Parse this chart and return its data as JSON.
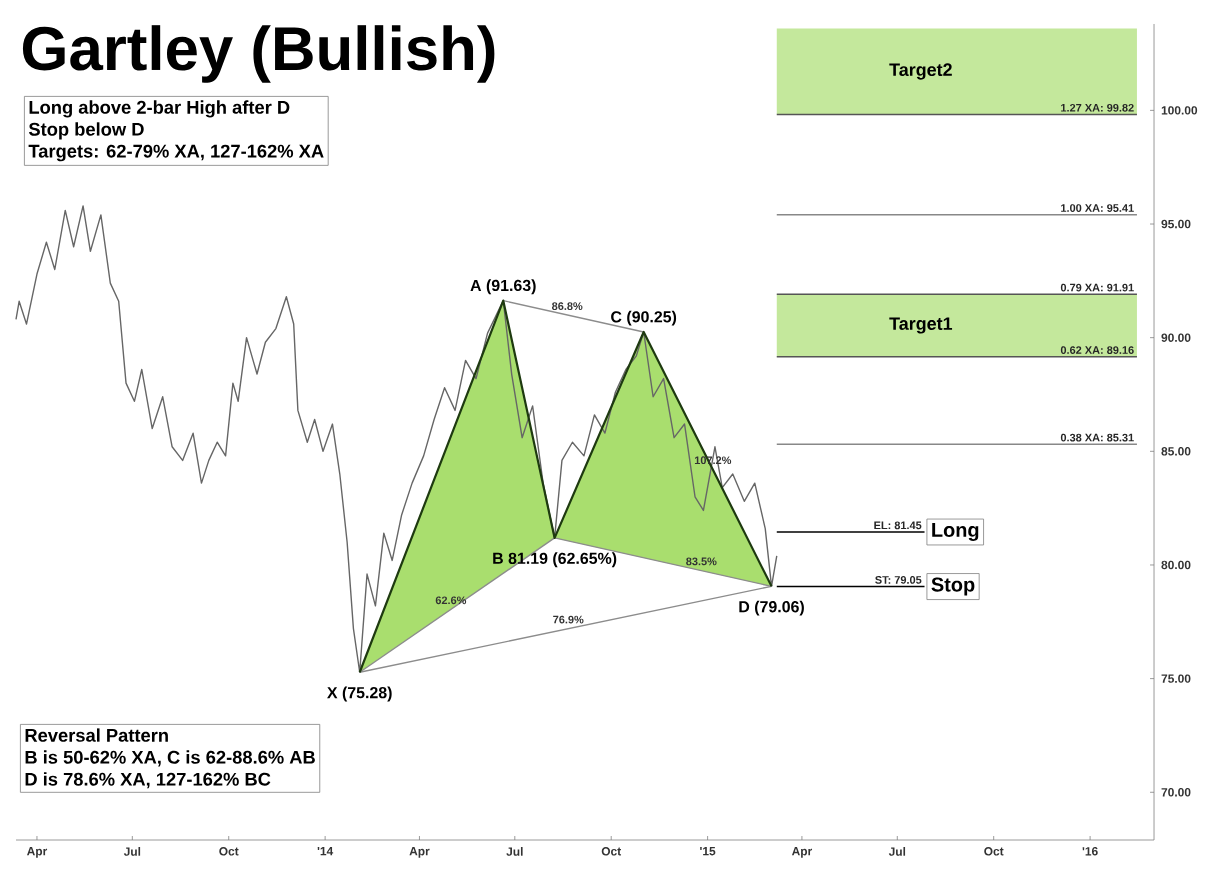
{
  "chart_data": {
    "type": "line",
    "title": "Gartley (Bullish)",
    "xlim": [
      "2013-03-12",
      "2016-03-02"
    ],
    "ylim": [
      67.9,
      103.8
    ],
    "xticks": [
      {
        "value": "2013-04-01",
        "label": "Apr"
      },
      {
        "value": "2013-07-01",
        "label": "Jul"
      },
      {
        "value": "2013-10-01",
        "label": "Oct"
      },
      {
        "value": "2014-01-01",
        "label": "'14"
      },
      {
        "value": "2014-04-01",
        "label": "Apr"
      },
      {
        "value": "2014-07-01",
        "label": "Jul"
      },
      {
        "value": "2014-10-01",
        "label": "Oct"
      },
      {
        "value": "2015-01-01",
        "label": "'15"
      },
      {
        "value": "2015-04-01",
        "label": "Apr"
      },
      {
        "value": "2015-07-01",
        "label": "Jul"
      },
      {
        "value": "2015-10-01",
        "label": "Oct"
      },
      {
        "value": "2016-01-01",
        "label": "'16"
      }
    ],
    "yticks": [
      {
        "value": 70,
        "label": "70.00"
      },
      {
        "value": 75,
        "label": "75.00"
      },
      {
        "value": 80,
        "label": "80.00"
      },
      {
        "value": 85,
        "label": "85.00"
      },
      {
        "value": 90,
        "label": "90.00"
      },
      {
        "value": 95,
        "label": "95.00"
      },
      {
        "value": 100,
        "label": "100.00"
      }
    ],
    "bands": [
      {
        "axis": "y",
        "from": 99.82,
        "to": 103.6,
        "label": "Target2",
        "color": "#c4e89c"
      },
      {
        "axis": "y",
        "from": 89.16,
        "to": 91.91,
        "label": "Target1",
        "color": "#c4e89c"
      }
    ],
    "ref_lines": [
      {
        "axis": "y",
        "value": 99.82,
        "label": "1.27 XA: 99.82",
        "color": "#555555"
      },
      {
        "axis": "y",
        "value": 95.41,
        "label": "1.00 XA: 95.41",
        "color": "#888888"
      },
      {
        "axis": "y",
        "value": 91.91,
        "label": "0.79 XA: 91.91",
        "color": "#555555"
      },
      {
        "axis": "y",
        "value": 89.16,
        "label": "0.62 XA: 89.16",
        "color": "#555555"
      },
      {
        "axis": "y",
        "value": 85.31,
        "label": "0.38 XA: 85.31",
        "color": "#888888"
      },
      {
        "axis": "y",
        "value": 81.45,
        "label": "EL: 81.45",
        "color": "#000000"
      },
      {
        "axis": "y",
        "value": 79.05,
        "label": "ST: 79.05",
        "color": "#000000"
      }
    ],
    "series": [
      {
        "color": "#666666",
        "x": [
          "2013-03-12",
          "2013-03-15",
          "2013-03-22",
          "2013-04-01",
          "2013-04-10",
          "2013-04-18",
          "2013-04-28",
          "2013-05-06",
          "2013-05-15",
          "2013-05-22",
          "2013-06-01",
          "2013-06-10",
          "2013-06-18",
          "2013-06-25",
          "2013-07-03",
          "2013-07-10",
          "2013-07-20",
          "2013-07-30",
          "2013-08-08",
          "2013-08-18",
          "2013-08-28",
          "2013-09-05",
          "2013-09-12",
          "2013-09-20",
          "2013-09-28",
          "2013-10-05",
          "2013-10-10",
          "2013-10-18",
          "2013-10-28",
          "2013-11-05",
          "2013-11-15",
          "2013-11-25",
          "2013-12-02",
          "2013-12-06",
          "2013-12-15",
          "2013-12-22",
          "2013-12-30",
          "2014-01-08",
          "2014-01-15",
          "2014-01-22",
          "2014-01-28",
          "2014-02-03",
          "2014-02-10",
          "2014-02-18",
          "2014-02-26",
          "2014-03-06",
          "2014-03-15",
          "2014-03-25",
          "2014-04-05",
          "2014-04-15",
          "2014-04-25",
          "2014-05-05",
          "2014-05-15",
          "2014-05-25",
          "2014-06-05",
          "2014-06-20",
          "2014-06-28",
          "2014-07-08",
          "2014-07-18",
          "2014-07-28",
          "2014-08-08",
          "2014-08-15",
          "2014-08-25",
          "2014-09-05",
          "2014-09-15",
          "2014-09-25",
          "2014-10-05",
          "2014-10-15",
          "2014-10-25",
          "2014-11-01",
          "2014-11-10",
          "2014-11-20",
          "2014-11-30",
          "2014-12-10",
          "2014-12-20",
          "2014-12-28",
          "2015-01-08",
          "2015-01-15",
          "2015-01-25",
          "2015-02-05",
          "2015-02-15",
          "2015-02-25",
          "2015-03-03",
          "2015-03-08"
        ],
        "values": [
          90.8,
          91.6,
          90.6,
          92.8,
          94.2,
          93.0,
          95.6,
          94.0,
          95.8,
          93.8,
          95.4,
          92.4,
          91.6,
          88.0,
          87.2,
          88.6,
          86.0,
          87.4,
          85.2,
          84.6,
          85.8,
          83.6,
          84.6,
          85.4,
          84.8,
          88.0,
          87.2,
          90.0,
          88.4,
          89.8,
          90.4,
          91.8,
          90.6,
          86.8,
          85.4,
          86.4,
          85.0,
          86.2,
          84.0,
          81.0,
          77.2,
          75.28,
          79.6,
          78.2,
          81.4,
          80.2,
          82.2,
          83.6,
          84.8,
          86.4,
          87.8,
          86.8,
          89.0,
          88.2,
          90.2,
          91.63,
          88.4,
          85.6,
          87.0,
          83.6,
          81.19,
          84.6,
          85.4,
          84.8,
          86.6,
          85.8,
          87.6,
          88.6,
          89.2,
          90.25,
          87.4,
          88.2,
          85.6,
          86.2,
          83.0,
          82.4,
          85.2,
          83.4,
          84.0,
          82.8,
          83.6,
          81.6,
          79.06,
          80.4
        ]
      },
      {
        "color": "#8c8c8c",
        "x": [
          "2014-02-03",
          "2014-08-08"
        ],
        "values": [
          75.28,
          81.19
        ]
      },
      {
        "color": "#8c8c8c",
        "x": [
          "2014-06-20",
          "2014-11-01"
        ],
        "values": [
          91.63,
          90.25
        ]
      },
      {
        "color": "#8c8c8c",
        "x": [
          "2014-08-08",
          "2015-03-03"
        ],
        "values": [
          81.19,
          79.06
        ]
      },
      {
        "color": "#8c8c8c",
        "x": [
          "2014-02-03",
          "2015-03-03"
        ],
        "values": [
          75.28,
          79.06
        ]
      },
      {
        "color": "#1e3a10",
        "x": [
          "2014-02-03",
          "2014-06-20",
          "2014-08-08",
          "2014-11-01",
          "2015-03-03"
        ],
        "values": [
          75.28,
          91.63,
          81.19,
          90.25,
          79.06
        ]
      }
    ],
    "annotations": [
      "Long above 2-bar High after D",
      "Stop below D",
      "Targets: 62-79% XA, 127-162% XA",
      "Reversal Pattern",
      "B is 50-62% XA, C is 62-88.6% AB",
      "D is 78.6% XA, 127-162% BC",
      {
        "text": "A (91.63)",
        "x": "2014-06-20",
        "y": 91.63
      },
      {
        "text": "C (90.25)",
        "x": "2014-11-01",
        "y": 90.25
      },
      {
        "text": "B 81.19 (62.65%)",
        "x": "2014-08-08",
        "y": 81.19
      },
      {
        "text": "X (75.28)",
        "x": "2014-02-03",
        "y": 75.28
      },
      {
        "text": "D (79.06)",
        "x": "2015-03-03",
        "y": 79.06
      },
      {
        "text": "86.8%",
        "x": "2014-08-20",
        "y": 90.98
      },
      {
        "text": "62.6%",
        "x": "2014-05-01",
        "y": 78.04
      },
      {
        "text": "76.9%",
        "x": "2014-08-21",
        "y": 77.19
      },
      {
        "text": "83.5%",
        "x": "2014-12-26",
        "y": 79.75
      },
      {
        "text": "107.2%",
        "x": "2015-01-06",
        "y": 84.2
      },
      {
        "text": "Long",
        "x": "2015-07-27",
        "y": 81.45
      },
      {
        "text": "Stop",
        "x": "2015-07-27",
        "y": 79.05
      }
    ]
  }
}
